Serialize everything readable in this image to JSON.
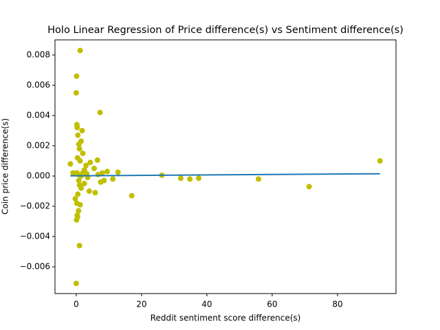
{
  "chart_data": {
    "type": "scatter",
    "title": "Holo Linear Regression of Price difference(s) vs Sentiment difference(s)",
    "x_label": "Reddit sentiment score difference(s)",
    "y_label": "Coin price difference(s)",
    "color": "#bfbf00",
    "x": [
      -1.8,
      0.1,
      1.2,
      0,
      7.3,
      0.2,
      0.3,
      1.8,
      0.5,
      1.5,
      0.8,
      1,
      2,
      0.4,
      1.2,
      4.3,
      6.5,
      3,
      5.5,
      2.5,
      9.5,
      12.8,
      8,
      0.6,
      1.5,
      3.5,
      26.2,
      32,
      34.8,
      37.5,
      55.8,
      71.3,
      93,
      11.2,
      7.5,
      8.5,
      17,
      5.8,
      4,
      1.5,
      2.5,
      0.5,
      -0.3,
      0.2,
      1.2,
      0.7,
      0.3,
      0.1,
      0.4,
      1,
      0,
      0.8,
      0.2,
      2,
      3.2,
      1,
      6.7,
      -1
    ],
    "values": [
      0.0008,
      0.0066,
      0.0083,
      0.0055,
      0.0042,
      0.0034,
      0.0032,
      0.003,
      0.0027,
      0.0023,
      0.0021,
      0.0018,
      0.0015,
      0.0012,
      0.001,
      0.0009,
      0.00105,
      0.0007,
      0.0005,
      0.0004,
      0.0003,
      0.00025,
      0.0002,
      0.0001,
      0,
      -0.0001,
      5e-05,
      -0.00015,
      -0.0002,
      -0.00015,
      -0.0002,
      -0.0007,
      0.001,
      -0.0002,
      -0.0004,
      -0.0003,
      -0.0013,
      -0.0011,
      -0.001,
      -0.0008,
      -0.0005,
      -0.0012,
      -0.0015,
      -0.0018,
      -0.0019,
      -0.0023,
      -0.0026,
      -0.0029,
      -0.0027,
      -0.0046,
      -0.0071,
      -0.0003,
      0.0002,
      0.0002,
      0.00015,
      -0.0006,
      0.0001,
      0.0002
    ],
    "regression_line": {
      "color": "#1f77b4",
      "x": [
        -1.8,
        93
      ],
      "values": [
        1e-05,
        0.00015
      ]
    },
    "xlim": [
      -6.5,
      97.9
    ],
    "xticks": [
      0,
      20,
      40,
      60,
      80
    ],
    "ylim": [
      -0.00777,
      0.009
    ],
    "yticks": [
      {
        "value": -0.006,
        "label": "−0.006"
      },
      {
        "value": -0.004,
        "label": "−0.004"
      },
      {
        "value": -0.002,
        "label": "−0.002"
      },
      {
        "value": 0,
        "label": "0.000"
      },
      0.002,
      0.004,
      0.006,
      0.008
    ]
  }
}
